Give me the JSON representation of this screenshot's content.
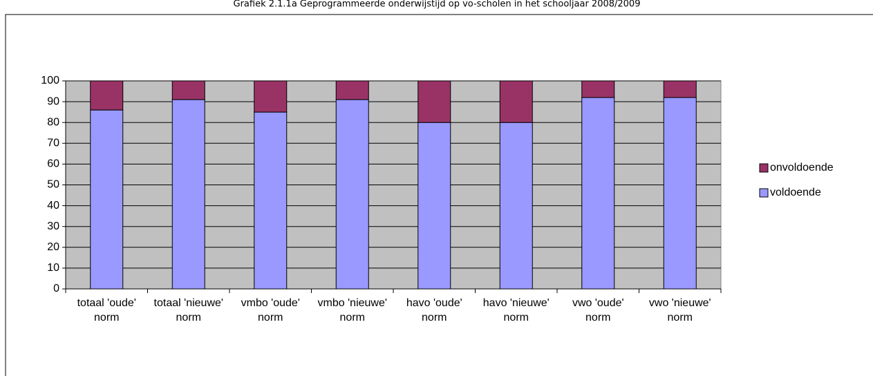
{
  "chart_data": {
    "type": "stacked-bar",
    "title": "Grafiek 2.1.1a Geprogrammeerde onderwijstijd op vo-scholen in het schooljaar 2008/2009",
    "categories": [
      "totaal 'oude' norm",
      "totaal 'nieuwe' norm",
      "vmbo 'oude' norm",
      "vmbo 'nieuwe' norm",
      "havo 'oude' norm",
      "havo 'nieuwe' norm",
      "vwo 'oude' norm",
      "vwo 'nieuwe' norm"
    ],
    "series": [
      {
        "name": "voldoende",
        "color": "#9999ff",
        "values": [
          86,
          91,
          85,
          91,
          80,
          80,
          92,
          92
        ]
      },
      {
        "name": "onvoldoende",
        "color": "#993366",
        "values": [
          14,
          9,
          15,
          9,
          20,
          20,
          8,
          8
        ]
      }
    ],
    "ylim": [
      0,
      100
    ],
    "yticks": [
      0,
      10,
      20,
      30,
      40,
      50,
      60,
      70,
      80,
      90,
      100
    ],
    "grid": true,
    "legend": "right",
    "plot_background": "#c0c0c0"
  }
}
